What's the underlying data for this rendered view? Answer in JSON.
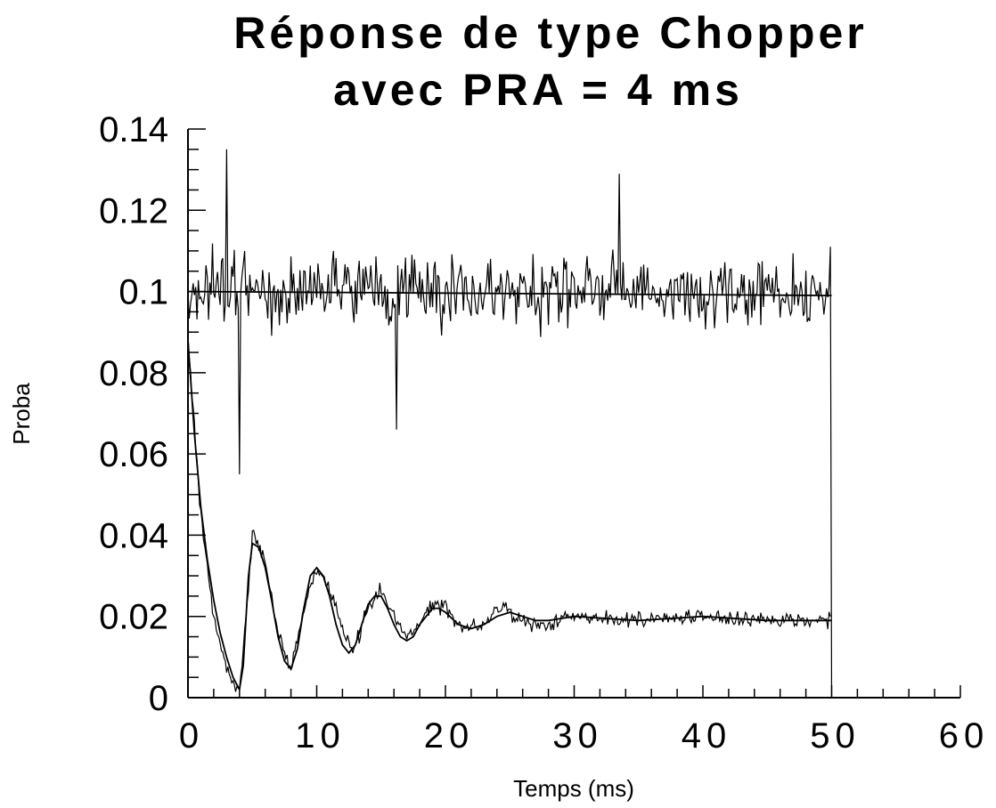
{
  "chart_data": {
    "type": "line",
    "title_line1": "Réponse de type Chopper",
    "title_line2": "avec PRA = 4 ms",
    "xlabel": "Temps (ms)",
    "ylabel": "Proba",
    "xlim": [
      0,
      60
    ],
    "ylim": [
      0,
      0.14
    ],
    "xticks": [
      0,
      10,
      20,
      30,
      40,
      50,
      60
    ],
    "xtick_labels": [
      "0",
      "10",
      "20",
      "30",
      "40",
      "50",
      "60"
    ],
    "yticks": [
      0,
      0.02,
      0.04,
      0.06,
      0.08,
      0.1,
      0.12,
      0.14
    ],
    "ytick_labels": [
      "0",
      "0.02",
      "0.04",
      "0.06",
      "0.08",
      "0.1",
      "0.12",
      "0.14"
    ],
    "grid": false,
    "legend": "none",
    "series": [
      {
        "kind": "noisy",
        "description_points": [
          [
            0,
            0.1
          ],
          [
            3,
            0.135
          ],
          [
            4,
            0.055
          ],
          [
            16.2,
            0.066
          ],
          [
            33.5,
            0.129
          ],
          [
            50,
            0.099
          ]
        ],
        "values": [
          [
            0,
            0.1
          ],
          [
            10,
            0.1
          ],
          [
            20,
            0.1
          ],
          [
            30,
            0.1
          ],
          [
            40,
            0.1
          ],
          [
            50,
            0.1
          ]
        ]
      },
      {
        "kind": "smooth",
        "values": [
          [
            0,
            0.1
          ],
          [
            50,
            0.099
          ]
        ]
      },
      {
        "kind": "noisy",
        "values": [
          [
            0,
            0.088
          ],
          [
            1,
            0.045
          ],
          [
            2,
            0.02
          ],
          [
            3,
            0.007
          ],
          [
            4,
            0.0015
          ],
          [
            4.4,
            0.015
          ],
          [
            5,
            0.04
          ],
          [
            6,
            0.033
          ],
          [
            7,
            0.016
          ],
          [
            8,
            0.007
          ],
          [
            9,
            0.022
          ],
          [
            10,
            0.032
          ],
          [
            11,
            0.027
          ],
          [
            12,
            0.017
          ],
          [
            12.8,
            0.011
          ],
          [
            14,
            0.022
          ],
          [
            15,
            0.027
          ],
          [
            16,
            0.02
          ],
          [
            17,
            0.015
          ],
          [
            18,
            0.018
          ],
          [
            19,
            0.023
          ],
          [
            20,
            0.022
          ],
          [
            21,
            0.018
          ],
          [
            22,
            0.017
          ],
          [
            23,
            0.018
          ],
          [
            24,
            0.022
          ],
          [
            25,
            0.021
          ],
          [
            26,
            0.019
          ],
          [
            28,
            0.018
          ],
          [
            30,
            0.02
          ],
          [
            35,
            0.019
          ],
          [
            40,
            0.02
          ],
          [
            45,
            0.019
          ],
          [
            50,
            0.019
          ]
        ]
      },
      {
        "kind": "smooth",
        "values": [
          [
            0,
            0.088
          ],
          [
            0.5,
            0.065
          ],
          [
            1,
            0.047
          ],
          [
            1.5,
            0.034
          ],
          [
            2,
            0.024
          ],
          [
            2.5,
            0.016
          ],
          [
            3,
            0.01
          ],
          [
            3.5,
            0.005
          ],
          [
            4,
            0.002
          ],
          [
            4.3,
            0.008
          ],
          [
            4.7,
            0.03
          ],
          [
            5,
            0.038
          ],
          [
            5.5,
            0.037
          ],
          [
            6,
            0.032
          ],
          [
            6.5,
            0.024
          ],
          [
            7,
            0.015
          ],
          [
            7.5,
            0.009
          ],
          [
            8,
            0.007
          ],
          [
            8.5,
            0.012
          ],
          [
            9,
            0.022
          ],
          [
            9.5,
            0.03
          ],
          [
            10,
            0.032
          ],
          [
            10.5,
            0.03
          ],
          [
            11,
            0.025
          ],
          [
            11.5,
            0.018
          ],
          [
            12,
            0.013
          ],
          [
            12.5,
            0.011
          ],
          [
            13,
            0.013
          ],
          [
            13.5,
            0.018
          ],
          [
            14,
            0.023
          ],
          [
            14.5,
            0.025
          ],
          [
            15,
            0.025
          ],
          [
            15.5,
            0.022
          ],
          [
            16,
            0.018
          ],
          [
            16.5,
            0.015
          ],
          [
            17,
            0.014
          ],
          [
            17.5,
            0.015
          ],
          [
            18,
            0.018
          ],
          [
            18.5,
            0.02
          ],
          [
            19,
            0.022
          ],
          [
            19.5,
            0.022
          ],
          [
            20,
            0.021
          ],
          [
            21,
            0.018
          ],
          [
            22,
            0.017
          ],
          [
            23,
            0.018
          ],
          [
            24,
            0.02
          ],
          [
            25,
            0.021
          ],
          [
            26,
            0.02
          ],
          [
            27,
            0.019
          ],
          [
            28,
            0.019
          ],
          [
            30,
            0.02
          ],
          [
            35,
            0.019
          ],
          [
            40,
            0.02
          ],
          [
            45,
            0.019
          ],
          [
            50,
            0.019
          ]
        ]
      }
    ]
  }
}
